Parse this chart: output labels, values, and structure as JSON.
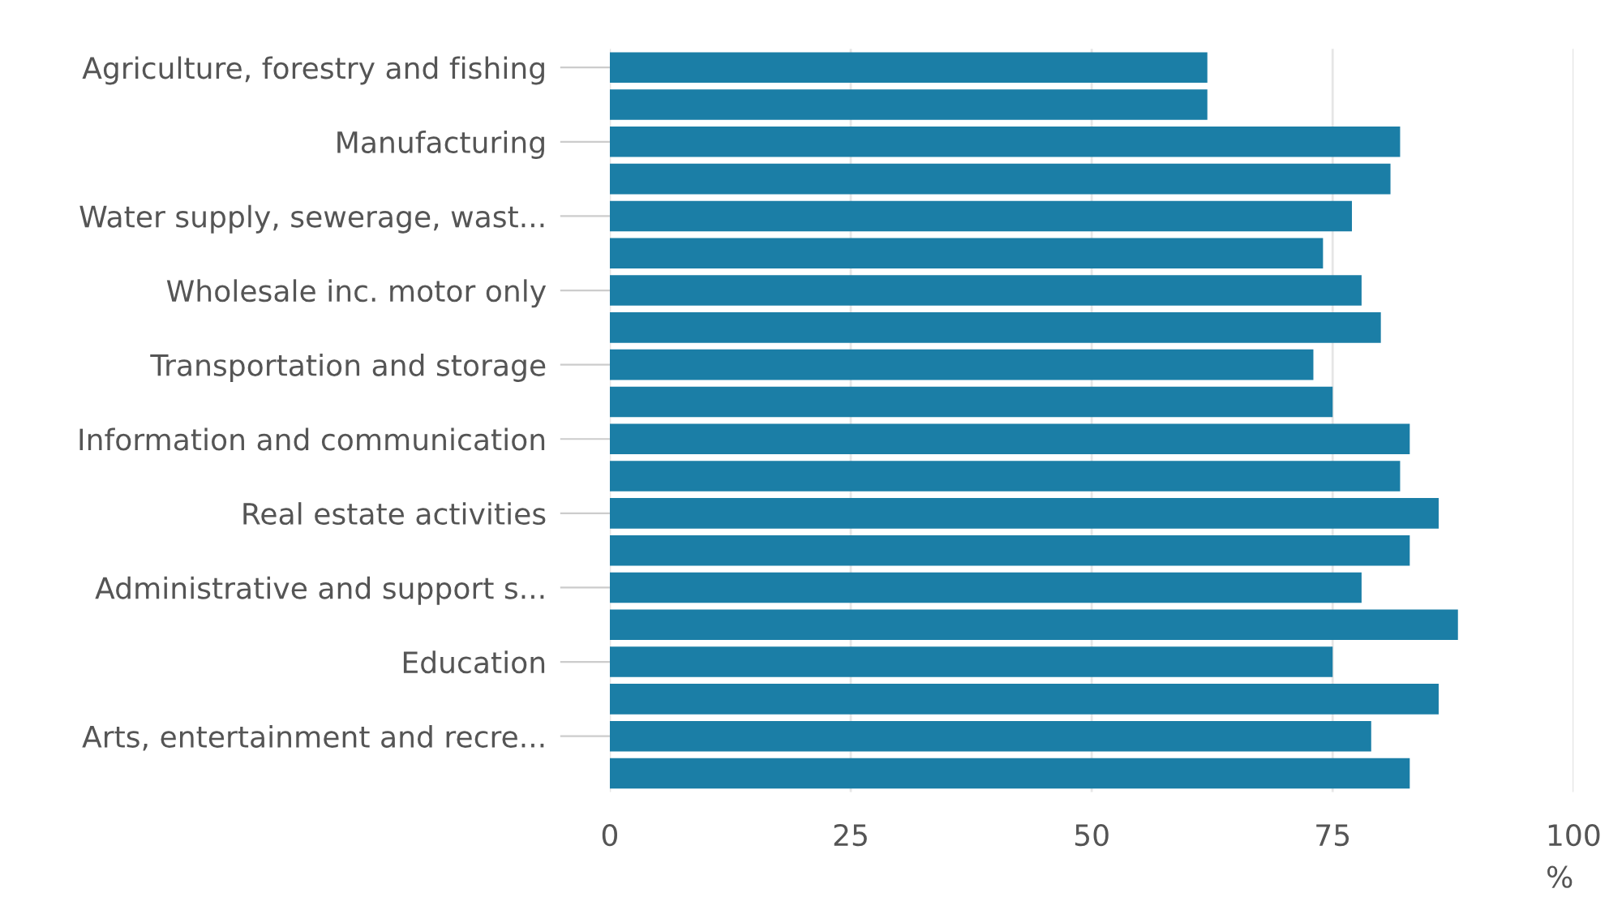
{
  "chart_data": {
    "type": "bar",
    "orientation": "horizontal",
    "categories": [
      "Agriculture, forestry and fishing",
      null,
      "Manufacturing",
      null,
      "Water supply, sewerage, wast...",
      null,
      "Wholesale inc. motor only",
      null,
      "Transportation and storage",
      null,
      "Information and communication",
      null,
      "Real estate activities",
      null,
      "Administrative and support s...",
      null,
      "Education",
      null,
      "Arts, entertainment and recre...",
      null
    ],
    "values": [
      62,
      62,
      82,
      81,
      77,
      74,
      78,
      80,
      73,
      75,
      83,
      82,
      86,
      83,
      78,
      88,
      75,
      86,
      79,
      83
    ],
    "color": "#1b7ea6",
    "xlim": [
      0,
      100
    ],
    "xticks": [
      0,
      25,
      50,
      75,
      100
    ],
    "xlabel": "%",
    "grid": "x",
    "legend": false
  }
}
